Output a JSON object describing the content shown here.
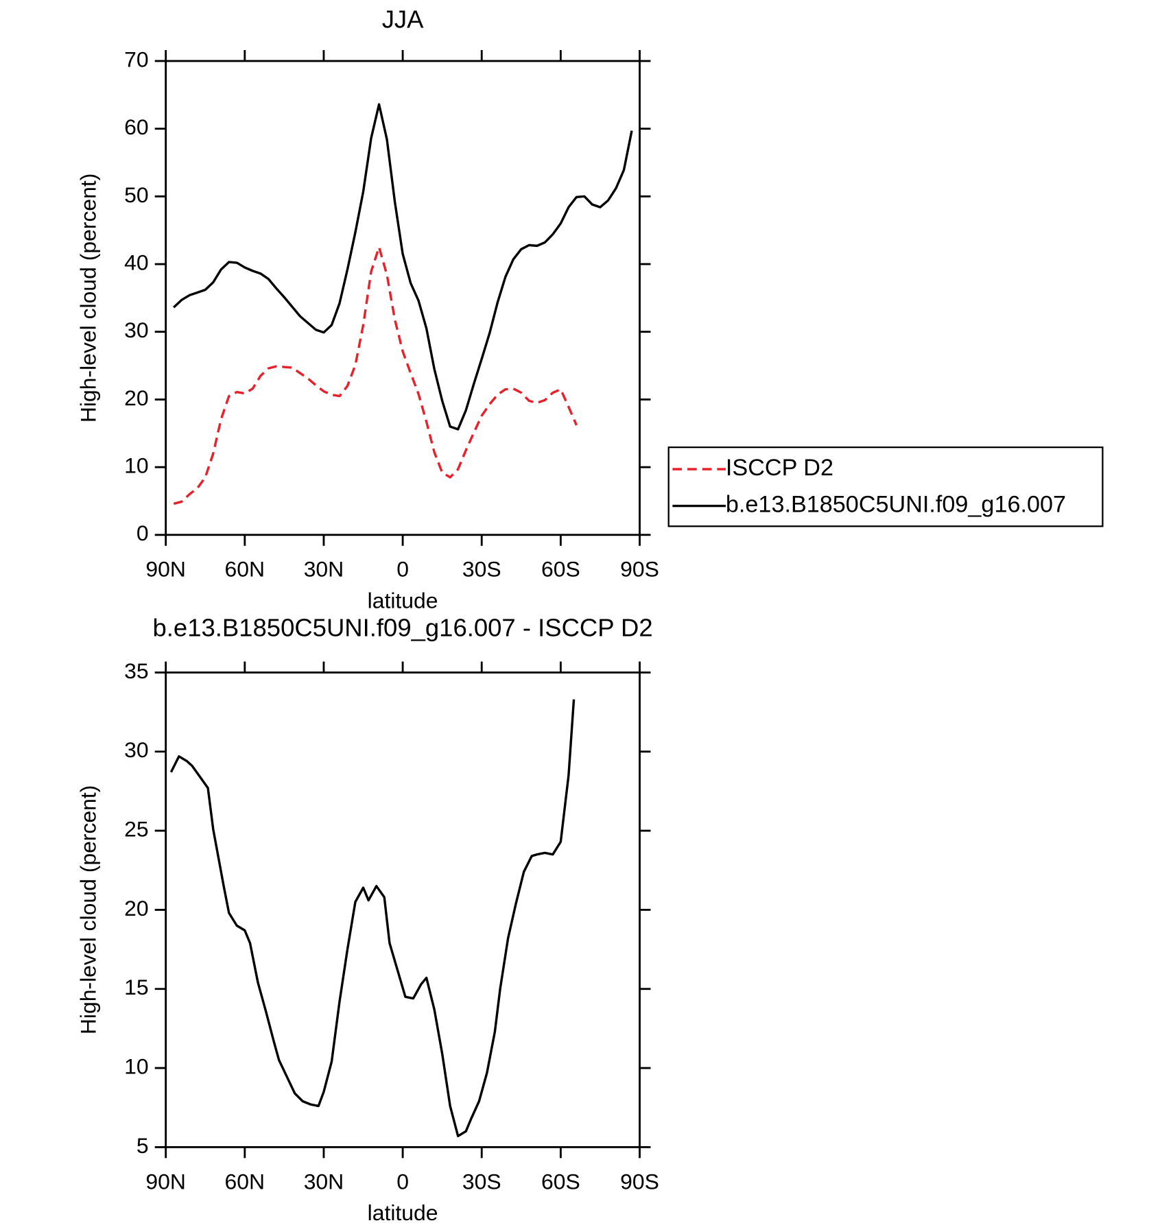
{
  "chart_data": [
    {
      "type": "line",
      "title": "JJA",
      "xlabel": "latitude",
      "ylabel": "High-level cloud (percent)",
      "x": [
        87,
        84,
        81,
        78,
        75,
        72,
        69,
        66,
        63,
        60,
        57,
        54,
        51,
        48,
        45,
        42,
        39,
        36,
        33,
        30,
        27,
        24,
        21,
        18,
        15,
        12,
        9,
        6,
        3,
        0,
        -3,
        -6,
        -9,
        -12,
        -15,
        -18,
        -21,
        -24,
        -27,
        -30,
        -33,
        -36,
        -39,
        -42,
        -45,
        -48,
        -51,
        -54,
        -57,
        -60,
        -63,
        -66,
        -69,
        -72,
        -75,
        -78,
        -81,
        -84,
        -87
      ],
      "series": [
        {
          "name": "ISCCP D2",
          "color": "#e8202a",
          "style": "dashed",
          "values": [
            4.6,
            4.9,
            6.0,
            6.9,
            8.5,
            12.0,
            17.1,
            20.5,
            21.1,
            20.9,
            21.6,
            23.5,
            24.6,
            24.9,
            24.8,
            24.7,
            23.9,
            23.1,
            22.1,
            21.2,
            20.7,
            20.5,
            22.0,
            25.1,
            31.0,
            38.9,
            42.5,
            38.4,
            31.8,
            27.1,
            23.9,
            20.8,
            16.7,
            12.2,
            9.2,
            8.5,
            9.7,
            12.5,
            15.1,
            17.6,
            19.3,
            20.7,
            21.5,
            21.6,
            21.0,
            19.8,
            19.5,
            19.9,
            21.0,
            21.5,
            18.9,
            16.2,
            null,
            null,
            null,
            null,
            null,
            null,
            null
          ]
        },
        {
          "name": "b.e13.B1850C5UNI.f09_g16.007",
          "color": "#000000",
          "style": "solid",
          "values": [
            33.6,
            34.7,
            35.4,
            35.8,
            36.2,
            37.3,
            39.2,
            40.3,
            40.2,
            39.5,
            39.0,
            38.6,
            37.8,
            36.4,
            35.1,
            33.7,
            32.3,
            31.3,
            30.3,
            29.9,
            31.0,
            34.2,
            39.2,
            44.7,
            50.7,
            58.6,
            63.6,
            58.4,
            49.2,
            41.5,
            37.2,
            34.6,
            30.5,
            24.5,
            19.8,
            16.0,
            15.6,
            18.4,
            22.3,
            26.0,
            29.8,
            34.3,
            38.1,
            40.7,
            42.2,
            42.8,
            42.7,
            43.2,
            44.4,
            46.0,
            48.4,
            49.9,
            50.0,
            48.8,
            48.4,
            49.4,
            51.2,
            53.9,
            59.7
          ]
        }
      ],
      "xlim": [
        90,
        -90
      ],
      "xticks": [
        {
          "value": 90,
          "label": "90N"
        },
        {
          "value": 60,
          "label": "60N"
        },
        {
          "value": 30,
          "label": "30N"
        },
        0,
        {
          "value": -30,
          "label": "30S"
        },
        {
          "value": -60,
          "label": "60S"
        },
        {
          "value": -90,
          "label": "90S"
        }
      ],
      "ylim": [
        0,
        70
      ],
      "yticks": [
        0,
        10,
        20,
        30,
        40,
        50,
        60,
        70
      ],
      "grid": false,
      "legend": "right"
    },
    {
      "type": "line",
      "title": "b.e13.B1850C5UNI.f09_g16.007 - ISCCP D2",
      "xlabel": "latitude",
      "ylabel": "High-level cloud (percent)",
      "x": [
        88,
        85,
        82,
        80,
        77,
        74,
        72,
        68,
        66,
        63,
        60,
        58,
        55,
        52,
        49,
        47,
        43,
        41,
        38,
        35,
        32,
        30,
        27,
        24,
        21,
        18,
        15,
        13,
        10,
        7,
        5,
        2,
        -1,
        -4,
        -7,
        -9,
        -12,
        -15,
        -18,
        -21,
        -24,
        -26,
        -29,
        -32,
        -35,
        -37,
        -40,
        -43,
        -46,
        -49,
        -51,
        -54,
        -57,
        -60,
        -63,
        -65
      ],
      "values": [
        28.7,
        29.7,
        29.4,
        29.1,
        28.4,
        27.7,
        25.1,
        21.5,
        19.8,
        19.0,
        18.7,
        17.9,
        15.4,
        13.6,
        11.7,
        10.5,
        9.1,
        8.4,
        7.9,
        7.7,
        7.6,
        8.5,
        10.4,
        14.2,
        17.5,
        20.5,
        21.4,
        20.6,
        21.5,
        20.8,
        17.9,
        16.2,
        14.5,
        14.4,
        15.3,
        15.7,
        13.7,
        10.9,
        7.6,
        5.7,
        6.0,
        6.8,
        7.9,
        9.7,
        12.3,
        15.0,
        18.2,
        20.4,
        22.4,
        23.4,
        23.5,
        23.6,
        23.5,
        24.3,
        28.5,
        33.3
      ],
      "color": "#000000",
      "xlim": [
        90,
        -90
      ],
      "xticks": [
        {
          "value": 90,
          "label": "90N"
        },
        {
          "value": 60,
          "label": "60N"
        },
        {
          "value": 30,
          "label": "30N"
        },
        0,
        {
          "value": -30,
          "label": "30S"
        },
        {
          "value": -60,
          "label": "60S"
        },
        {
          "value": -90,
          "label": "90S"
        }
      ],
      "ylim": [
        5,
        35
      ],
      "yticks": [
        5,
        10,
        15,
        20,
        25,
        30,
        35
      ],
      "grid": false
    }
  ]
}
